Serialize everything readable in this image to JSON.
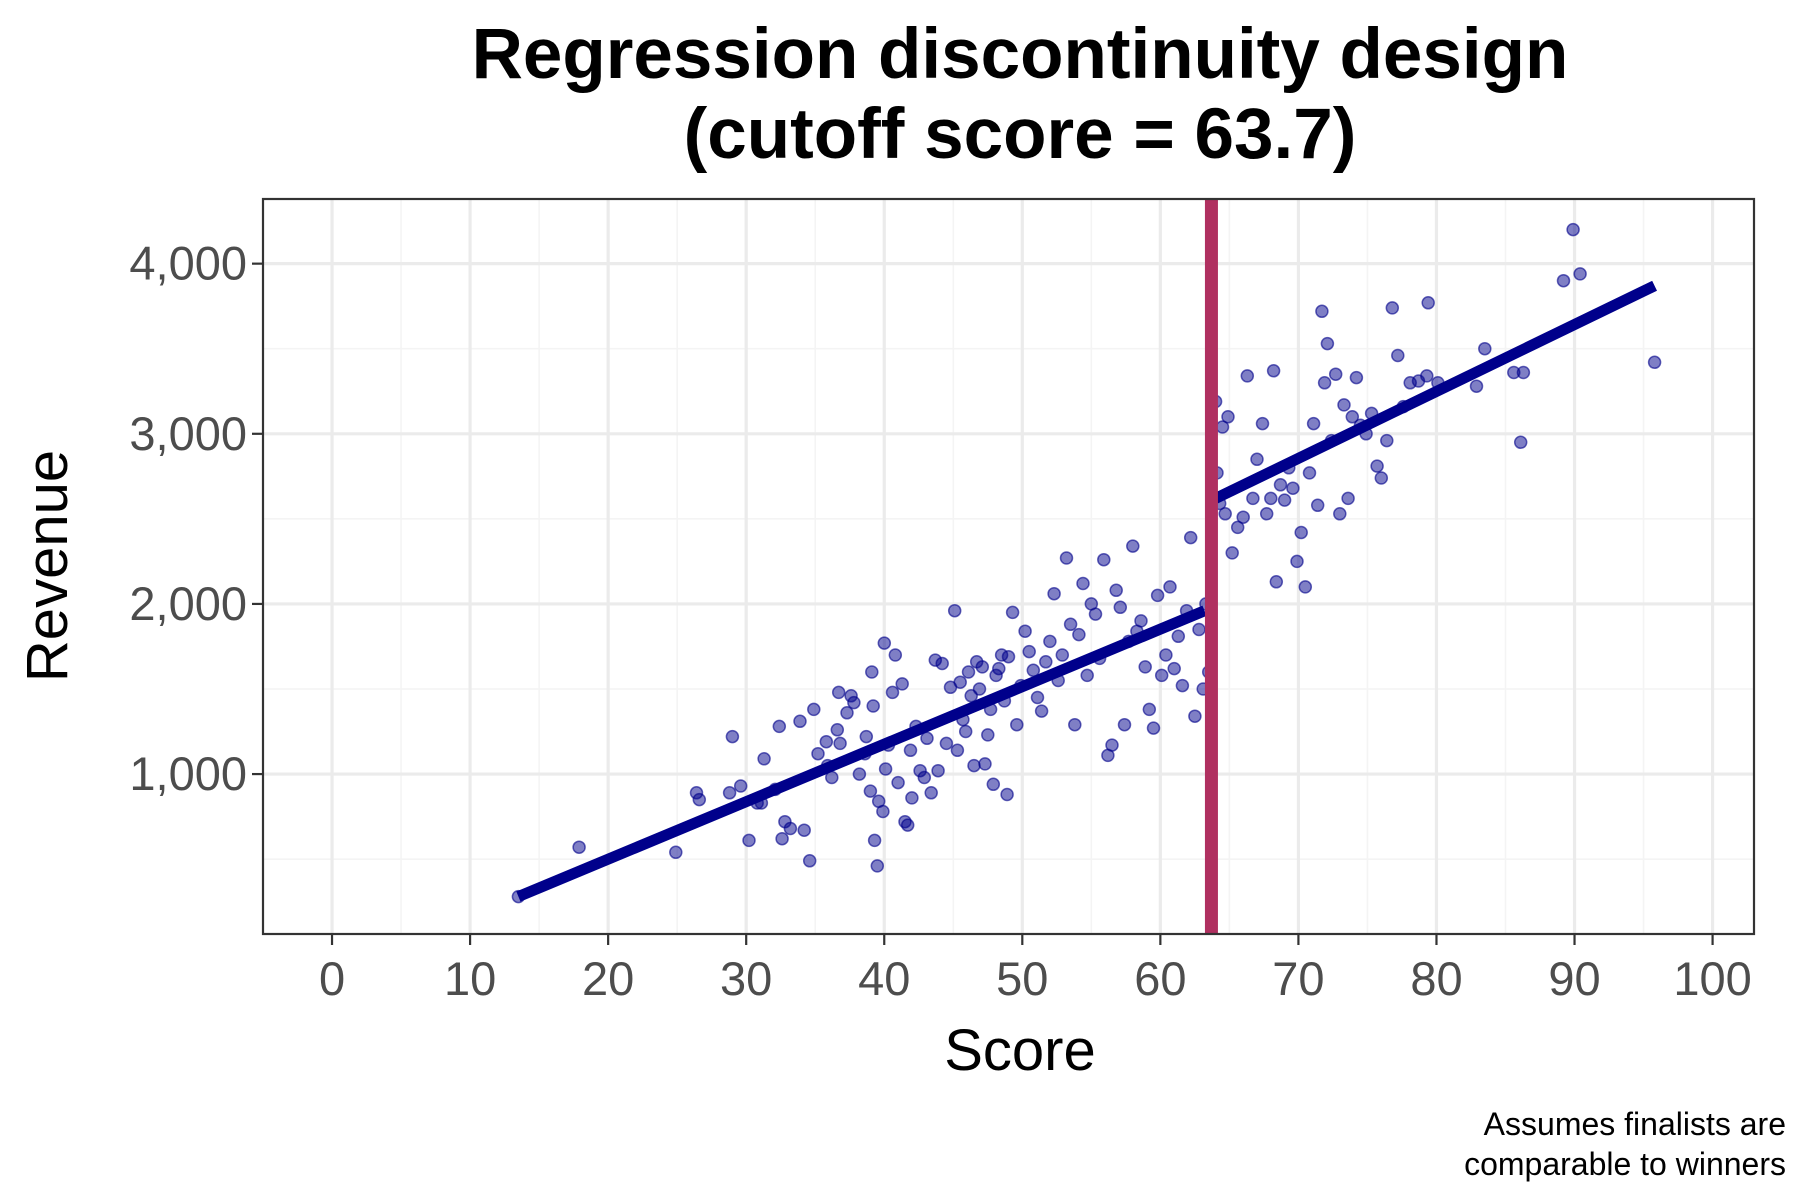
{
  "colors": {
    "points": "#00008b",
    "fit_line": "#00008b",
    "cutoff_line": "#b03060",
    "grid": "#ebebeb",
    "panel_border": "#333333",
    "tick_text": "#4d4d4d"
  },
  "chart_data": {
    "type": "scatter",
    "title": "Regression discontinuity design",
    "subtitle": "(cutoff score = 63.7)",
    "xlabel": "Score",
    "ylabel": "Revenue",
    "caption_lines": [
      "Assumes finalists are",
      "comparable to winners"
    ],
    "xlim": [
      -5,
      103
    ],
    "ylim": [
      60,
      4380
    ],
    "xticks": [
      0,
      10,
      20,
      30,
      40,
      50,
      60,
      70,
      80,
      90,
      100
    ],
    "xtick_labels": [
      "0",
      "10",
      "20",
      "30",
      "40",
      "50",
      "60",
      "70",
      "80",
      "90",
      "100"
    ],
    "yticks": [
      1000,
      2000,
      3000,
      4000
    ],
    "ytick_labels": [
      "1,000",
      "2,000",
      "3,000",
      "4,000"
    ],
    "grid": true,
    "legend": "none",
    "cutoff": 63.7,
    "fit_lines": [
      {
        "x": [
          13.5,
          63.2
        ],
        "y": [
          280,
          1960
        ]
      },
      {
        "x": [
          64.0,
          95.8
        ],
        "y": [
          2620,
          3870
        ]
      }
    ],
    "points": [
      [
        13.5,
        280
      ],
      [
        17.9,
        570
      ],
      [
        24.9,
        540
      ],
      [
        26.4,
        890
      ],
      [
        26.6,
        850
      ],
      [
        28.8,
        890
      ],
      [
        29.0,
        1220
      ],
      [
        29.6,
        930
      ],
      [
        30.2,
        610
      ],
      [
        30.8,
        830
      ],
      [
        31.1,
        830
      ],
      [
        31.3,
        1090
      ],
      [
        32.1,
        910
      ],
      [
        32.4,
        1280
      ],
      [
        32.6,
        620
      ],
      [
        32.8,
        720
      ],
      [
        33.2,
        680
      ],
      [
        33.9,
        1310
      ],
      [
        34.2,
        670
      ],
      [
        34.6,
        490
      ],
      [
        34.9,
        1380
      ],
      [
        35.2,
        1120
      ],
      [
        35.8,
        1190
      ],
      [
        35.9,
        1050
      ],
      [
        36.2,
        980
      ],
      [
        36.6,
        1260
      ],
      [
        36.7,
        1480
      ],
      [
        36.8,
        1180
      ],
      [
        37.3,
        1360
      ],
      [
        37.6,
        1460
      ],
      [
        37.8,
        1420
      ],
      [
        38.2,
        1000
      ],
      [
        38.6,
        1120
      ],
      [
        38.7,
        1220
      ],
      [
        39.0,
        900
      ],
      [
        39.1,
        1600
      ],
      [
        39.2,
        1400
      ],
      [
        39.3,
        610
      ],
      [
        39.5,
        460
      ],
      [
        39.6,
        840
      ],
      [
        39.9,
        780
      ],
      [
        40.0,
        1770
      ],
      [
        40.1,
        1030
      ],
      [
        40.3,
        1170
      ],
      [
        40.6,
        1480
      ],
      [
        40.8,
        1700
      ],
      [
        41.0,
        950
      ],
      [
        41.3,
        1530
      ],
      [
        41.5,
        720
      ],
      [
        41.7,
        700
      ],
      [
        41.9,
        1140
      ],
      [
        42.0,
        860
      ],
      [
        42.3,
        1280
      ],
      [
        42.6,
        1020
      ],
      [
        42.9,
        980
      ],
      [
        43.1,
        1210
      ],
      [
        43.4,
        890
      ],
      [
        43.7,
        1670
      ],
      [
        43.9,
        1020
      ],
      [
        44.2,
        1650
      ],
      [
        44.5,
        1180
      ],
      [
        44.8,
        1510
      ],
      [
        45.1,
        1960
      ],
      [
        45.3,
        1140
      ],
      [
        45.5,
        1540
      ],
      [
        45.7,
        1320
      ],
      [
        45.9,
        1250
      ],
      [
        46.1,
        1600
      ],
      [
        46.3,
        1460
      ],
      [
        46.5,
        1050
      ],
      [
        46.7,
        1660
      ],
      [
        46.9,
        1500
      ],
      [
        47.1,
        1630
      ],
      [
        47.3,
        1060
      ],
      [
        47.5,
        1230
      ],
      [
        47.7,
        1380
      ],
      [
        47.9,
        940
      ],
      [
        48.1,
        1580
      ],
      [
        48.3,
        1620
      ],
      [
        48.5,
        1700
      ],
      [
        48.7,
        1430
      ],
      [
        48.9,
        880
      ],
      [
        49.0,
        1690
      ],
      [
        49.3,
        1950
      ],
      [
        49.6,
        1290
      ],
      [
        49.9,
        1520
      ],
      [
        50.2,
        1840
      ],
      [
        50.5,
        1720
      ],
      [
        50.8,
        1610
      ],
      [
        51.1,
        1450
      ],
      [
        51.4,
        1370
      ],
      [
        51.7,
        1660
      ],
      [
        52.0,
        1780
      ],
      [
        52.3,
        2060
      ],
      [
        52.6,
        1550
      ],
      [
        52.9,
        1700
      ],
      [
        53.2,
        2270
      ],
      [
        53.5,
        1880
      ],
      [
        53.8,
        1290
      ],
      [
        54.1,
        1820
      ],
      [
        54.4,
        2120
      ],
      [
        54.7,
        1580
      ],
      [
        55.0,
        2000
      ],
      [
        55.3,
        1940
      ],
      [
        55.6,
        1680
      ],
      [
        55.9,
        2260
      ],
      [
        56.2,
        1110
      ],
      [
        56.5,
        1170
      ],
      [
        56.8,
        2080
      ],
      [
        57.1,
        1980
      ],
      [
        57.4,
        1290
      ],
      [
        57.7,
        1780
      ],
      [
        58.0,
        2340
      ],
      [
        58.3,
        1840
      ],
      [
        58.6,
        1900
      ],
      [
        58.9,
        1630
      ],
      [
        59.2,
        1380
      ],
      [
        59.5,
        1270
      ],
      [
        59.8,
        2050
      ],
      [
        60.1,
        1580
      ],
      [
        60.4,
        1700
      ],
      [
        60.7,
        2100
      ],
      [
        61.0,
        1620
      ],
      [
        61.3,
        1810
      ],
      [
        61.6,
        1520
      ],
      [
        61.9,
        1960
      ],
      [
        62.2,
        2390
      ],
      [
        62.5,
        1340
      ],
      [
        62.8,
        1850
      ],
      [
        63.1,
        1500
      ],
      [
        63.3,
        2000
      ],
      [
        63.5,
        1600
      ],
      [
        64.0,
        3190
      ],
      [
        64.1,
        2770
      ],
      [
        64.3,
        2590
      ],
      [
        64.5,
        3040
      ],
      [
        64.7,
        2530
      ],
      [
        64.9,
        3100
      ],
      [
        65.2,
        2300
      ],
      [
        65.6,
        2450
      ],
      [
        66.0,
        2510
      ],
      [
        66.3,
        3340
      ],
      [
        66.7,
        2620
      ],
      [
        67.0,
        2850
      ],
      [
        67.4,
        3060
      ],
      [
        67.7,
        2530
      ],
      [
        68.0,
        2620
      ],
      [
        68.2,
        3370
      ],
      [
        68.4,
        2130
      ],
      [
        68.7,
        2700
      ],
      [
        69.0,
        2610
      ],
      [
        69.3,
        2800
      ],
      [
        69.6,
        2680
      ],
      [
        69.9,
        2250
      ],
      [
        70.2,
        2420
      ],
      [
        70.5,
        2100
      ],
      [
        70.8,
        2770
      ],
      [
        71.1,
        3060
      ],
      [
        71.4,
        2580
      ],
      [
        71.7,
        3720
      ],
      [
        71.9,
        3300
      ],
      [
        72.1,
        3530
      ],
      [
        72.4,
        2960
      ],
      [
        72.7,
        3350
      ],
      [
        73.0,
        2530
      ],
      [
        73.3,
        3170
      ],
      [
        73.6,
        2620
      ],
      [
        73.9,
        3100
      ],
      [
        74.2,
        3330
      ],
      [
        74.5,
        3050
      ],
      [
        74.9,
        3000
      ],
      [
        75.3,
        3120
      ],
      [
        75.7,
        2810
      ],
      [
        76.0,
        2740
      ],
      [
        76.4,
        2960
      ],
      [
        76.8,
        3740
      ],
      [
        77.2,
        3460
      ],
      [
        77.6,
        3160
      ],
      [
        78.1,
        3300
      ],
      [
        78.7,
        3310
      ],
      [
        79.3,
        3340
      ],
      [
        79.4,
        3770
      ],
      [
        80.1,
        3300
      ],
      [
        82.9,
        3280
      ],
      [
        83.5,
        3500
      ],
      [
        85.6,
        3360
      ],
      [
        86.1,
        2950
      ],
      [
        86.3,
        3360
      ],
      [
        89.2,
        3900
      ],
      [
        89.9,
        4200
      ],
      [
        90.4,
        3940
      ],
      [
        95.8,
        3420
      ]
    ]
  }
}
